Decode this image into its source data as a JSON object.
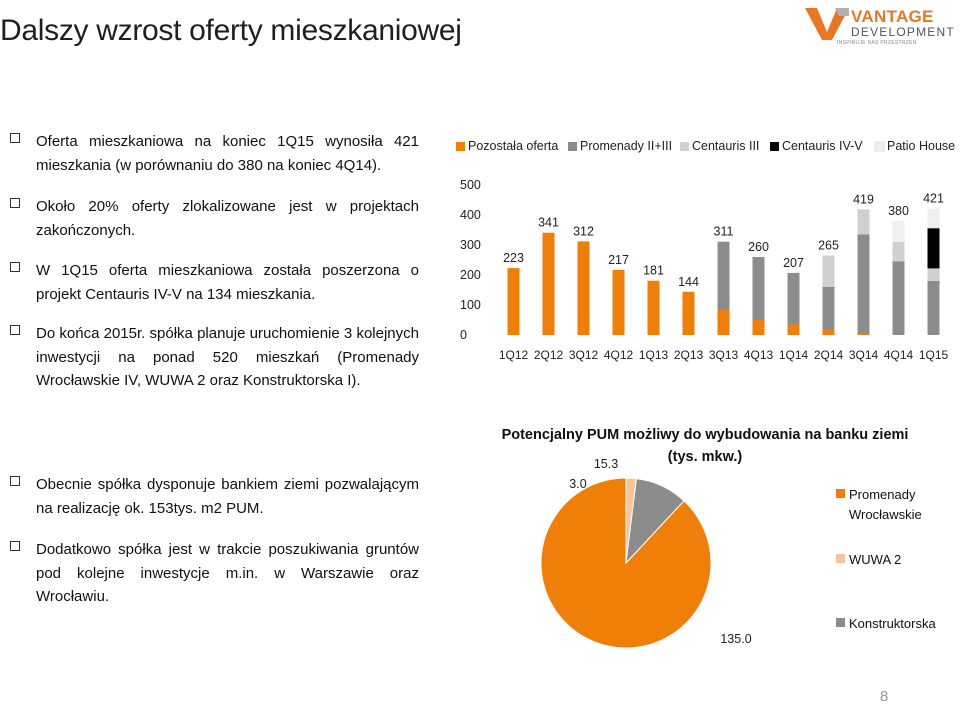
{
  "title": "Dalszy wzrost oferty mieszkaniowej",
  "logo": {
    "main": "VANTAGE",
    "sub": "DEVELOPMENT",
    "tagline": "INSPIRUJE NAS PRZESTRZEŃ",
    "icon": "vantage-logo-mark"
  },
  "bullets": [
    "Oferta mieszkaniowa na koniec 1Q15 wynosiła 421 mieszkania (w porównaniu do 380 na koniec 4Q14).",
    "Około 20% oferty zlokalizowane jest w projektach zakończonych.",
    "W 1Q15 oferta mieszkaniowa została poszerzona o projekt Centauris IV-V na 134 mieszkania.",
    "Do końca 2015r. spółka planuje uruchomienie 3 kolejnych inwestycji na ponad 520 mieszkań (Promenady Wrocławskie IV, WUWA 2 oraz Konstruktorska I).",
    "Obecnie spółka dysponuje bankiem ziemi pozwalającym na realizację ok. 153tys. m2 PUM.",
    "Dodatkowo spółka jest w trakcie poszukiwania gruntów pod kolejne inwestycje m.in. w Warszawie oraz Wrocławiu."
  ],
  "page_number": "8",
  "colors": {
    "orange": "#F07F09",
    "dark_gray": "#8C8C8C",
    "light_gray": "#D0D0D0",
    "black": "#000000",
    "very_light_gray": "#EFEFEF",
    "peach": "#F8C499"
  },
  "chart_data": [
    {
      "type": "bar",
      "stacked": true,
      "categories": [
        "1Q12",
        "2Q12",
        "3Q12",
        "4Q12",
        "1Q13",
        "2Q13",
        "3Q13",
        "4Q13",
        "1Q14",
        "2Q14",
        "3Q14",
        "4Q14",
        "1Q15"
      ],
      "totals": [
        223,
        341,
        312,
        217,
        181,
        144,
        311,
        260,
        207,
        265,
        419,
        380,
        421
      ],
      "series": [
        {
          "name": "Pozostała oferta",
          "color": "#F07F09",
          "values": [
            223,
            341,
            312,
            217,
            181,
            144,
            85,
            50,
            35,
            20,
            5,
            0,
            0
          ]
        },
        {
          "name": "Promenady II+III",
          "color": "#8C8C8C",
          "values": [
            0,
            0,
            0,
            0,
            0,
            0,
            226,
            210,
            172,
            140,
            330,
            245,
            180
          ]
        },
        {
          "name": "Centauris III",
          "color": "#D0D0D0",
          "values": [
            0,
            0,
            0,
            0,
            0,
            0,
            0,
            0,
            0,
            105,
            84,
            65,
            42
          ]
        },
        {
          "name": "Centauris IV-V",
          "color": "#000000",
          "values": [
            0,
            0,
            0,
            0,
            0,
            0,
            0,
            0,
            0,
            0,
            0,
            0,
            134
          ]
        },
        {
          "name": "Patio House",
          "color": "#EFEFEF",
          "values": [
            0,
            0,
            0,
            0,
            0,
            0,
            0,
            0,
            0,
            0,
            0,
            70,
            65
          ]
        }
      ],
      "ylim": [
        0,
        500
      ],
      "yticks": [
        0,
        100,
        200,
        300,
        400,
        500
      ],
      "legend_position": "top"
    },
    {
      "type": "pie",
      "title": "Potencjalny PUM możliwy do wybudowania na banku ziemi (tys. mkw.)",
      "slices": [
        {
          "label": "Promenady Wrocławskie",
          "value": 135.0,
          "value_label": "135.0",
          "color": "#F07F09"
        },
        {
          "label": "WUWA 2",
          "value": 3.0,
          "value_label": "3.0",
          "color": "#F8C499"
        },
        {
          "label": "Konstruktorska",
          "value": 15.3,
          "value_label": "15.3",
          "color": "#8C8C8C"
        }
      ]
    }
  ]
}
